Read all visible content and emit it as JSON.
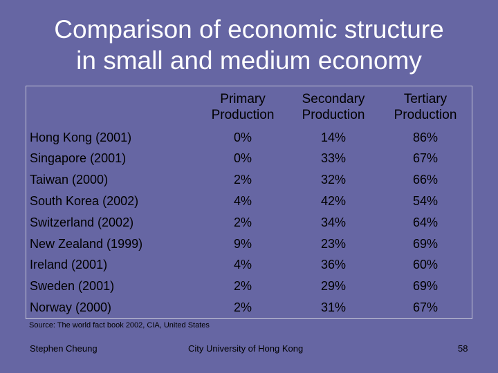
{
  "slide": {
    "title_line1": "Comparison of economic structure",
    "title_line2": "in small and medium economy",
    "source": "Source: The world fact book 2002, CIA, United States",
    "footer_left": "Stephen Cheung",
    "footer_center": "City University of Hong Kong",
    "page_number": "58"
  },
  "table": {
    "headers": [
      {
        "line1": "Primary",
        "line2": "Production"
      },
      {
        "line1": "Secondary",
        "line2": "Production"
      },
      {
        "line1": "Tertiary",
        "line2": "Production"
      }
    ],
    "rows": [
      {
        "country": "Hong Kong (2001)",
        "primary": "0%",
        "secondary": "14%",
        "tertiary": "86%"
      },
      {
        "country": "Singapore (2001)",
        "primary": "0%",
        "secondary": "33%",
        "tertiary": "67%"
      },
      {
        "country": "Taiwan (2000)",
        "primary": "2%",
        "secondary": "32%",
        "tertiary": "66%"
      },
      {
        "country": "South Korea (2002)",
        "primary": "4%",
        "secondary": "42%",
        "tertiary": "54%"
      },
      {
        "country": "Switzerland (2002)",
        "primary": "2%",
        "secondary": "34%",
        "tertiary": "64%"
      },
      {
        "country": "New Zealand (1999)",
        "primary": "9%",
        "secondary": "23%",
        "tertiary": "69%"
      },
      {
        "country": "Ireland (2001)",
        "primary": "4%",
        "secondary": "36%",
        "tertiary": "60%"
      },
      {
        "country": "Sweden (2001)",
        "primary": "2%",
        "secondary": "29%",
        "tertiary": "69%"
      },
      {
        "country": "Norway (2000)",
        "primary": "2%",
        "secondary": "31%",
        "tertiary": "67%"
      }
    ]
  }
}
